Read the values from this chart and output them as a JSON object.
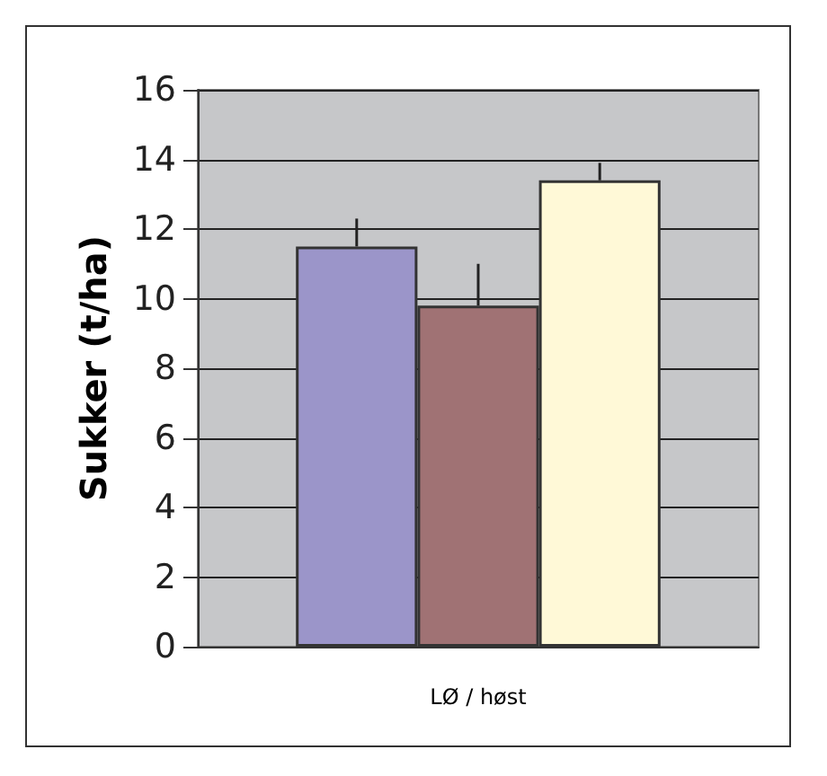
{
  "chart_data": {
    "type": "bar",
    "ylabel": "Sukker (t/ha)",
    "categories": [
      "LØ / høst"
    ],
    "series": [
      {
        "color": "#9b95c9",
        "values": [
          11.5
        ],
        "errors": [
          [
            11.5,
            12.3
          ]
        ]
      },
      {
        "color": "#a07274",
        "values": [
          9.8
        ],
        "errors": [
          [
            9.8,
            11.0
          ]
        ]
      },
      {
        "color": "#fff9d7",
        "values": [
          13.4
        ],
        "errors": [
          [
            13.4,
            13.9
          ]
        ]
      }
    ],
    "ylim": [
      0,
      16
    ],
    "yticks": [
      0,
      2,
      4,
      6,
      8,
      10,
      12,
      14,
      16
    ],
    "grid": "y"
  }
}
